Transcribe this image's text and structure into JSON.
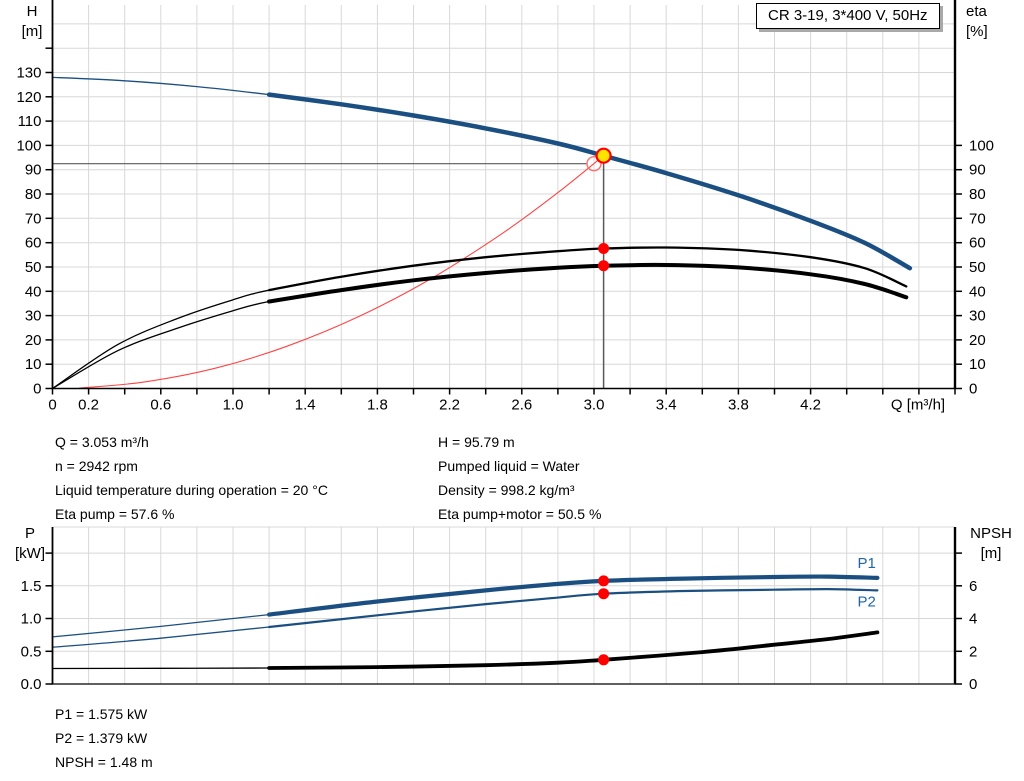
{
  "title_box": {
    "label": "CR 3-19, 3*400 V, 50Hz"
  },
  "colors": {
    "blue": "#1b4f82",
    "black": "#000000",
    "red": "#ff4444",
    "grid": "#d8d8d8",
    "axis": "#000000",
    "guide": "#595959",
    "dot": "#ff0000",
    "duty_fill": "#ffe200",
    "duty_stroke": "#ff0000",
    "open_stroke": "#ff7070",
    "label_blue": "#2366a8"
  },
  "info": {
    "left": [
      "Q = 3.053 m³/h",
      "n = 2942 rpm",
      "Liquid temperature during operation = 20 °C",
      "Eta pump = 57.6 %"
    ],
    "right": [
      "H = 95.79 m",
      "Pumped liquid = Water",
      "Density = 998.2 kg/m³",
      "Eta pump+motor = 50.5 %"
    ]
  },
  "results": [
    "P1 = 1.575 kW",
    "P2 = 1.379 kW",
    "NPSH = 1.48 m"
  ],
  "chart_data": [
    {
      "type": "line",
      "name": "qh-eta-chart",
      "title": "CR 3-19, 3*400 V, 50Hz",
      "x_axis": {
        "min": 0,
        "max": 5,
        "grid_step": 0.2,
        "tick_step": 0.2,
        "title": "Q [m³/h]",
        "labels": [
          {
            "v": 0,
            "t": "0"
          },
          {
            "v": 0.2,
            "t": "0.2"
          },
          {
            "v": 0.6,
            "t": "0.6"
          },
          {
            "v": 1.0,
            "t": "1.0"
          },
          {
            "v": 1.4,
            "t": "1.4"
          },
          {
            "v": 1.8,
            "t": "1.8"
          },
          {
            "v": 2.2,
            "t": "2.2"
          },
          {
            "v": 2.6,
            "t": "2.6"
          },
          {
            "v": 3.0,
            "t": "3.0"
          },
          {
            "v": 3.4,
            "t": "3.4"
          },
          {
            "v": 3.8,
            "t": "3.8"
          },
          {
            "v": 4.2,
            "t": "4.2"
          }
        ]
      },
      "y_left": {
        "title1": "H",
        "title2": "[m]",
        "ticks": [
          {
            "v": 0,
            "t": "0"
          },
          {
            "v": 10,
            "t": "10"
          },
          {
            "v": 20,
            "t": "20"
          },
          {
            "v": 30,
            "t": "30"
          },
          {
            "v": 40,
            "t": "40"
          },
          {
            "v": 50,
            "t": "50"
          },
          {
            "v": 60,
            "t": "60"
          },
          {
            "v": 70,
            "t": "70"
          },
          {
            "v": 80,
            "t": "80"
          },
          {
            "v": 90,
            "t": "90"
          },
          {
            "v": 100,
            "t": "100"
          },
          {
            "v": 110,
            "t": "110"
          },
          {
            "v": 120,
            "t": "120"
          },
          {
            "v": 130,
            "t": "130"
          },
          {
            "v": 140
          }
        ]
      },
      "y_right": {
        "title1": "eta",
        "title2": "[%]",
        "ticks": [
          {
            "v": 0,
            "t": "0"
          },
          {
            "v": 10,
            "t": "10"
          },
          {
            "v": 20,
            "t": "20"
          },
          {
            "v": 30,
            "t": "30"
          },
          {
            "v": 40,
            "t": "40"
          },
          {
            "v": 50,
            "t": "50"
          },
          {
            "v": 60,
            "t": "60"
          },
          {
            "v": 70,
            "t": "70"
          },
          {
            "v": 80,
            "t": "80"
          },
          {
            "v": 90,
            "t": "90"
          },
          {
            "v": 100,
            "t": "100"
          }
        ]
      },
      "ygrid": [
        10,
        20,
        30,
        40,
        50,
        60,
        70,
        80,
        90,
        100,
        110,
        120,
        130,
        140,
        150
      ],
      "series": [
        {
          "id": "system-curve",
          "color": "red",
          "axis": "l",
          "w1": 1.1,
          "split": null,
          "pts": [
            [
              0.15,
              0.2
            ],
            [
              0.5,
              2.6
            ],
            [
              0.9,
              8.3
            ],
            [
              1.3,
              17.4
            ],
            [
              1.7,
              29.7
            ],
            [
              2.1,
              45.3
            ],
            [
              2.5,
              64.2
            ],
            [
              2.8,
              80.6
            ],
            [
              3.053,
              95.79
            ]
          ]
        },
        {
          "id": "eta-pump-curve",
          "color": "black",
          "axis": "r",
          "w1": 1.3,
          "w2": 2.3,
          "split": 1.2,
          "pts": [
            [
              0,
              0
            ],
            [
              0.36,
              18
            ],
            [
              0.7,
              29
            ],
            [
              1.0,
              36.5
            ],
            [
              1.2,
              40.5
            ],
            [
              1.6,
              46
            ],
            [
              2.0,
              50.5
            ],
            [
              2.4,
              54
            ],
            [
              2.8,
              56.5
            ],
            [
              3.053,
              57.6
            ],
            [
              3.4,
              58
            ],
            [
              3.8,
              57
            ],
            [
              4.2,
              54
            ],
            [
              4.5,
              49.5
            ],
            [
              4.73,
              42
            ]
          ]
        },
        {
          "id": "eta-pump-motor-curve",
          "color": "black",
          "axis": "r",
          "w1": 1.3,
          "w2": 4,
          "split": 1.2,
          "pts": [
            [
              0,
              0
            ],
            [
              0.36,
              15.5
            ],
            [
              0.7,
              25
            ],
            [
              1.0,
              32
            ],
            [
              1.2,
              35.8
            ],
            [
              1.6,
              40.5
            ],
            [
              2.0,
              44.5
            ],
            [
              2.4,
              47.5
            ],
            [
              2.8,
              49.7
            ],
            [
              3.053,
              50.5
            ],
            [
              3.4,
              50.8
            ],
            [
              3.8,
              49.8
            ],
            [
              4.2,
              47
            ],
            [
              4.5,
              43
            ],
            [
              4.73,
              37.5
            ]
          ]
        },
        {
          "id": "qh-curve",
          "color": "blue",
          "axis": "l",
          "w1": 1.3,
          "w2": 4.5,
          "split": 1.2,
          "pts": [
            [
              0,
              128
            ],
            [
              0.4,
              126.6
            ],
            [
              0.8,
              124.2
            ],
            [
              1.2,
              120.9
            ],
            [
              1.6,
              116.9
            ],
            [
              2.0,
              112.3
            ],
            [
              2.4,
              107.0
            ],
            [
              2.8,
              100.8
            ],
            [
              3.053,
              95.79
            ],
            [
              3.4,
              88.6
            ],
            [
              3.8,
              79.5
            ],
            [
              4.2,
              69.0
            ],
            [
              4.5,
              59.9
            ],
            [
              4.75,
              49.5
            ]
          ]
        }
      ],
      "guides": [
        {
          "q1": 0,
          "v1": 92.5,
          "q2": 2.96,
          "v2": 92.5,
          "axis": "l",
          "w": 1.2
        },
        {
          "q1": 3.053,
          "v1": 95.79,
          "q2": 3.053,
          "v2": 0,
          "axis": "l",
          "w": 1.5
        }
      ],
      "markers": [
        {
          "name": "requested-duty-point",
          "shape": "open",
          "q": 3.0,
          "v": 92.5,
          "axis": "l",
          "r": 7
        },
        {
          "name": "eta-pump-point",
          "shape": "dot",
          "q": 3.053,
          "v": 57.6,
          "axis": "r",
          "r": 5.5
        },
        {
          "name": "eta-pump-motor-point",
          "shape": "dot",
          "q": 3.053,
          "v": 50.5,
          "axis": "r",
          "r": 5.5
        },
        {
          "name": "actual-duty-point",
          "shape": "duty",
          "q": 3.053,
          "v": 95.79,
          "axis": "l",
          "r": 7
        }
      ],
      "annotations": []
    },
    {
      "type": "line",
      "name": "power-npsh-chart",
      "x_axis": {
        "min": 0,
        "max": 5,
        "grid_step": 0.2,
        "tick_step": null,
        "title": null,
        "labels": []
      },
      "y_left": {
        "title1": "P",
        "title2": "[kW]",
        "ticks": [
          {
            "v": 0,
            "t": "0.0"
          },
          {
            "v": 0.5,
            "t": "0.5"
          },
          {
            "v": 1,
            "t": "1.0"
          },
          {
            "v": 1.5,
            "t": "1.5"
          },
          {
            "v": 2
          }
        ]
      },
      "y_right": {
        "title1": "NPSH",
        "title2": "[m]",
        "ticks": [
          {
            "v": 0,
            "t": "0"
          },
          {
            "v": 2,
            "t": "2"
          },
          {
            "v": 4,
            "t": "4"
          },
          {
            "v": 6,
            "t": "6"
          },
          {
            "v": 8
          }
        ]
      },
      "ygrid": [
        0.5,
        1,
        1.5,
        2
      ],
      "series": [
        {
          "id": "npsh-curve",
          "color": "black",
          "axis": "r",
          "w1": 1.3,
          "w2": 3.8,
          "split": 1.2,
          "pts": [
            [
              0,
              0.95
            ],
            [
              0.6,
              0.96
            ],
            [
              1.2,
              0.98
            ],
            [
              1.8,
              1.03
            ],
            [
              2.4,
              1.15
            ],
            [
              2.8,
              1.3
            ],
            [
              3.053,
              1.48
            ],
            [
              3.6,
              1.95
            ],
            [
              4.0,
              2.4
            ],
            [
              4.3,
              2.75
            ],
            [
              4.57,
              3.15
            ]
          ]
        },
        {
          "id": "p2-curve",
          "color": "blue",
          "axis": "l",
          "w1": 1.3,
          "w2": 2.2,
          "split": 1.2,
          "pts": [
            [
              0,
              0.56
            ],
            [
              0.6,
              0.7
            ],
            [
              1.2,
              0.87
            ],
            [
              1.8,
              1.05
            ],
            [
              2.4,
              1.22
            ],
            [
              2.76,
              1.31
            ],
            [
              3.053,
              1.379
            ],
            [
              3.5,
              1.42
            ],
            [
              4.0,
              1.44
            ],
            [
              4.3,
              1.45
            ],
            [
              4.57,
              1.43
            ]
          ]
        },
        {
          "id": "p1-curve",
          "color": "blue",
          "axis": "l",
          "w1": 1.3,
          "w2": 4.2,
          "split": 1.2,
          "pts": [
            [
              0,
              0.72
            ],
            [
              0.6,
              0.88
            ],
            [
              1.2,
              1.06
            ],
            [
              1.8,
              1.26
            ],
            [
              2.4,
              1.43
            ],
            [
              2.76,
              1.52
            ],
            [
              3.053,
              1.575
            ],
            [
              3.5,
              1.61
            ],
            [
              4.0,
              1.635
            ],
            [
              4.3,
              1.64
            ],
            [
              4.57,
              1.62
            ]
          ]
        }
      ],
      "guides": [],
      "markers": [
        {
          "name": "p1-point",
          "shape": "dot",
          "q": 3.053,
          "v": 1.575,
          "axis": "l",
          "r": 5.5
        },
        {
          "name": "p2-point",
          "shape": "dot",
          "q": 3.053,
          "v": 1.379,
          "axis": "l",
          "r": 5.5
        },
        {
          "name": "npsh-point",
          "shape": "dot",
          "q": 3.053,
          "v": 1.48,
          "axis": "r",
          "r": 5.5
        }
      ],
      "annotations": [
        {
          "name": "p1-curve-label",
          "text": "P1",
          "q": 4.46,
          "v": 1.77,
          "axis": "l"
        },
        {
          "name": "p2-curve-label",
          "text": "P2",
          "q": 4.46,
          "v": 1.18,
          "axis": "l"
        }
      ]
    }
  ]
}
